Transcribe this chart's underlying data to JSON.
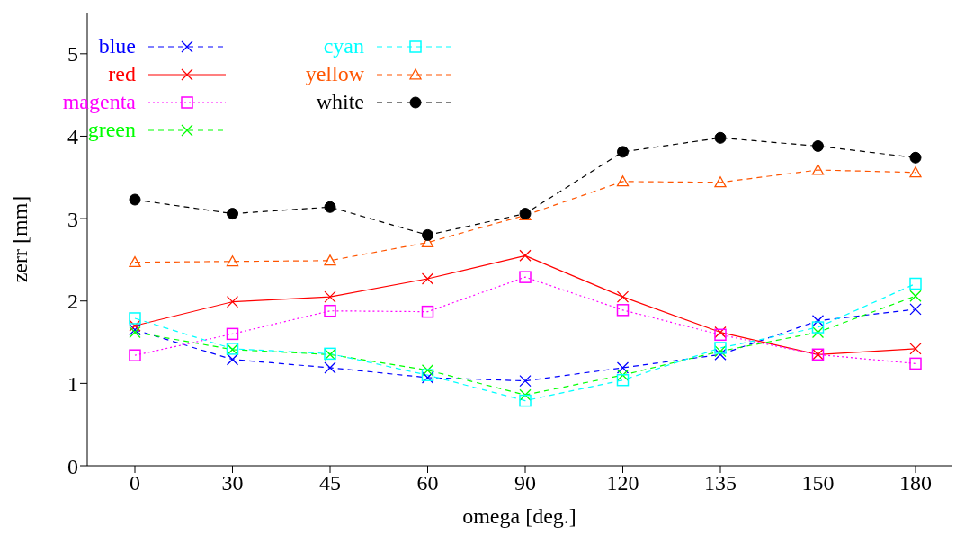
{
  "chart_data": {
    "type": "line",
    "xlabel": "omega [deg.]",
    "ylabel": "zerr [mm]",
    "categories": [
      "0",
      "30",
      "45",
      "60",
      "90",
      "120",
      "135",
      "150",
      "180"
    ],
    "ylim": [
      0,
      5.5
    ],
    "yticks": [
      0,
      1,
      2,
      3,
      4,
      5
    ],
    "grid": false,
    "legend": "top left",
    "series": [
      {
        "name": "blue",
        "color": "#0000ff",
        "line_style": "dashed",
        "marker": "cross",
        "values": [
          1.65,
          1.29,
          1.19,
          1.07,
          1.03,
          1.19,
          1.35,
          1.76,
          1.9
        ]
      },
      {
        "name": "red",
        "color": "#ff0000",
        "line_style": "solid",
        "marker": "cross",
        "values": [
          1.7,
          1.99,
          2.05,
          2.27,
          2.55,
          2.05,
          1.62,
          1.35,
          1.42
        ]
      },
      {
        "name": "magenta",
        "color": "#ff00ff",
        "line_style": "dotted",
        "marker": "square",
        "values": [
          1.34,
          1.6,
          1.88,
          1.87,
          2.29,
          1.89,
          1.59,
          1.35,
          1.24
        ]
      },
      {
        "name": "green",
        "color": "#00ff00",
        "line_style": "dashed",
        "marker": "cross",
        "values": [
          1.62,
          1.41,
          1.35,
          1.16,
          0.86,
          1.1,
          1.39,
          1.62,
          2.06
        ]
      },
      {
        "name": "cyan",
        "color": "#00ffff",
        "line_style": "dashed",
        "marker": "square",
        "values": [
          1.79,
          1.42,
          1.36,
          1.1,
          0.79,
          1.04,
          1.43,
          1.68,
          2.21
        ]
      },
      {
        "name": "yellow",
        "color": "#ff5500",
        "line_style": "dashed",
        "marker": "triangle",
        "values": [
          2.47,
          2.48,
          2.49,
          2.71,
          3.04,
          3.45,
          3.44,
          3.59,
          3.56
        ]
      },
      {
        "name": "white",
        "color": "#000000",
        "line_style": "dashed",
        "marker": "circle",
        "values": [
          3.23,
          3.06,
          3.14,
          2.8,
          3.06,
          3.81,
          3.98,
          3.88,
          3.74
        ]
      }
    ]
  }
}
